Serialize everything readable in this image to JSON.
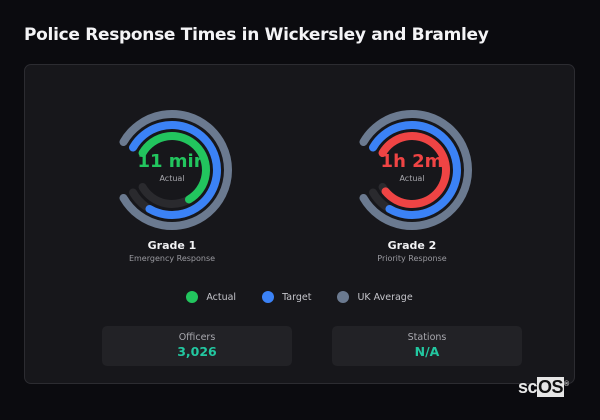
{
  "title": "Police Response Times in Wickersley and Bramley",
  "colors": {
    "actual_good": "#22c55e",
    "actual_bad": "#ef4444",
    "target": "#3b82f6",
    "uk_average": "#6b7a90",
    "track": "#2a2a2e",
    "accent": "#22c7a0"
  },
  "gauges": [
    {
      "name": "Grade 1",
      "description": "Emergency Response",
      "value": "11 min",
      "value_label": "Actual",
      "value_color": "#22c55e",
      "rings": [
        {
          "series": "UK Average",
          "fraction": 1.0,
          "color": "#6b7a90"
        },
        {
          "series": "Target",
          "fraction": 0.9,
          "color": "#3b82f6"
        },
        {
          "series": "Actual",
          "fraction": 0.7,
          "color": "#22c55e"
        }
      ]
    },
    {
      "name": "Grade 2",
      "description": "Priority Response",
      "value": "1h 2m",
      "value_label": "Actual",
      "value_color": "#ef4444",
      "rings": [
        {
          "series": "UK Average",
          "fraction": 1.0,
          "color": "#6b7a90"
        },
        {
          "series": "Target",
          "fraction": 0.9,
          "color": "#3b82f6"
        },
        {
          "series": "Actual",
          "fraction": 0.97,
          "color": "#ef4444"
        }
      ]
    }
  ],
  "legend": [
    {
      "label": "Actual",
      "color": "#22c55e"
    },
    {
      "label": "Target",
      "color": "#3b82f6"
    },
    {
      "label": "UK Average",
      "color": "#6b7a90"
    }
  ],
  "stats": [
    {
      "label": "Officers",
      "value": "3,026"
    },
    {
      "label": "Stations",
      "value": "N/A"
    }
  ],
  "logo": {
    "text_a": "sc",
    "text_b": "OS",
    "mark": "®"
  }
}
